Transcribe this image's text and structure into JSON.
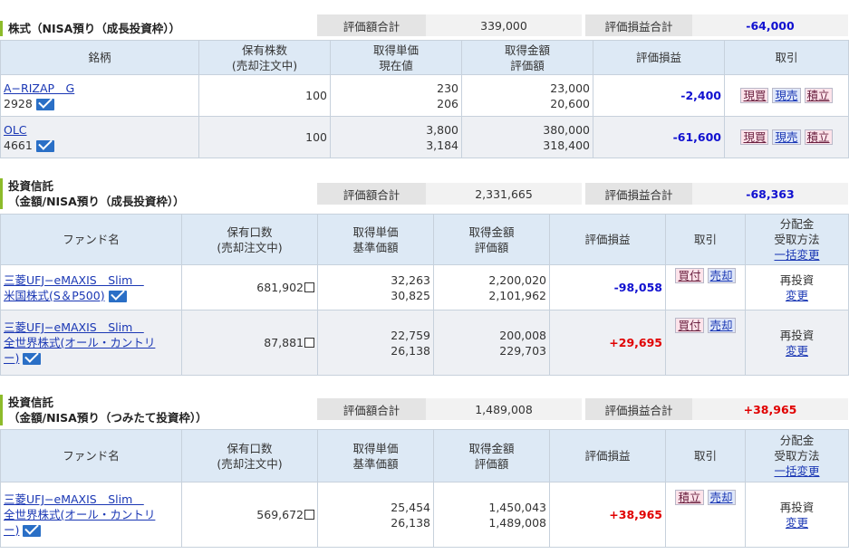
{
  "sec1": {
    "title": "株式（NISA預り（成長投資枠））",
    "sum_label": "評価額合計",
    "sum_value": "339,000",
    "pl_label": "評価損益合計",
    "pl_value": "-64,000",
    "headers": {
      "h1": "銘柄",
      "h2a": "保有株数",
      "h2b": "(売却注文中)",
      "h3a": "取得単価",
      "h3b": "現在値",
      "h4a": "取得金額",
      "h4b": "評価額",
      "h5": "評価損益",
      "h6": "取引"
    },
    "rows": [
      {
        "name": "A−RIZAP　G",
        "code": "2928",
        "qty": "100",
        "cost": "230",
        "price": "206",
        "amt": "23,000",
        "val": "20,600",
        "pl": "-2,400",
        "b1": "現買",
        "b2": "現売",
        "b3": "積立"
      },
      {
        "name": "OLC",
        "code": "4661",
        "qty": "100",
        "cost": "3,800",
        "price": "3,184",
        "amt": "380,000",
        "val": "318,400",
        "pl": "-61,600",
        "b1": "現買",
        "b2": "現売",
        "b3": "積立"
      }
    ]
  },
  "sec2": {
    "title1": "投資信託",
    "title2": "（金額/NISA預り（成長投資枠））",
    "sum_label": "評価額合計",
    "sum_value": "2,331,665",
    "pl_label": "評価損益合計",
    "pl_value": "-68,363",
    "headers": {
      "h1": "ファンド名",
      "h2a": "保有口数",
      "h2b": "(売却注文中)",
      "h3a": "取得単価",
      "h3b": "基準価額",
      "h4a": "取得金額",
      "h4b": "評価額",
      "h5": "評価損益",
      "h6": "取引",
      "h7a": "分配金",
      "h7b": "受取方法",
      "h7c": "一括変更"
    },
    "rows": [
      {
        "name1": "三菱UFJ−eMAXIS　Slim　",
        "name2": "米国株式(S＆P500)",
        "qty": "681,902",
        "cost": "32,263",
        "price": "30,825",
        "amt": "2,200,020",
        "val": "2,101,962",
        "pl": "-98,058",
        "b1": "買付",
        "b2": "売却",
        "div": "再投資",
        "chg": "変更"
      },
      {
        "name1": "三菱UFJ−eMAXIS　Slim　",
        "name2": "全世界株式(オール・カントリ",
        "name3": "ー)",
        "qty": "87,881",
        "cost": "22,759",
        "price": "26,138",
        "amt": "200,008",
        "val": "229,703",
        "pl": "+29,695",
        "b1": "買付",
        "b2": "売却",
        "div": "再投資",
        "chg": "変更"
      }
    ]
  },
  "sec3": {
    "title1": "投資信託",
    "title2": "（金額/NISA預り（つみたて投資枠））",
    "sum_label": "評価額合計",
    "sum_value": "1,489,008",
    "pl_label": "評価損益合計",
    "pl_value": "+38,965",
    "headers": {
      "h1": "ファンド名",
      "h2a": "保有口数",
      "h2b": "(売却注文中)",
      "h3a": "取得単価",
      "h3b": "基準価額",
      "h4a": "取得金額",
      "h4b": "評価額",
      "h5": "評価損益",
      "h6": "取引",
      "h7a": "分配金",
      "h7b": "受取方法",
      "h7c": "一括変更"
    },
    "rows": [
      {
        "name1": "三菱UFJ−eMAXIS　Slim　",
        "name2": "全世界株式(オール・カントリ",
        "name3": "ー)",
        "qty": "569,672",
        "cost": "25,454",
        "price": "26,138",
        "amt": "1,450,043",
        "val": "1,489,008",
        "pl": "+38,965",
        "b1": "積立",
        "b2": "売却",
        "div": "再投資",
        "chg": "変更"
      }
    ]
  },
  "icons": {
    "mail": "mail-icon",
    "order_box": "checkbox-icon"
  }
}
